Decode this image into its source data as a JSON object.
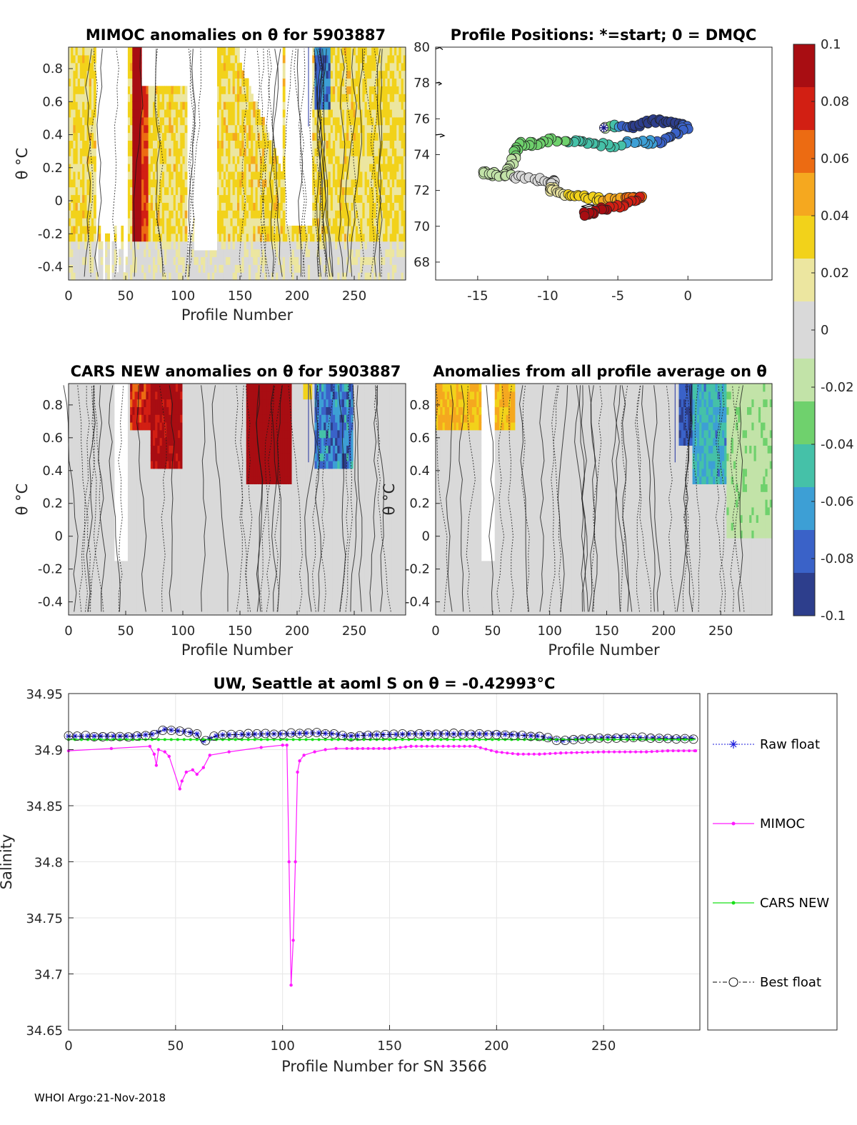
{
  "colors": {
    "scale": [
      "#2d3e8c",
      "#3a62c8",
      "#3d9fd5",
      "#45c1a8",
      "#6fd16d",
      "#c2e3a8",
      "#d9d9d9",
      "#ece6a0",
      "#f2d21a",
      "#f5a81f",
      "#ec6b12",
      "#d21f13",
      "#a80d12"
    ],
    "raw": "#1a1adb",
    "mimoc": "#ff1aff",
    "cars": "#18e018",
    "best": "#000000",
    "grid": "#e6e6e6",
    "contour": "#1a1a1a"
  },
  "panels": {
    "mimoc": {
      "title": "MIMOC anomalies on θ  for 5903887",
      "xlabel": "Profile Number",
      "ylabel": "θ °C"
    },
    "positions": {
      "title": "Profile Positions: *=start; 0 = DMQC"
    },
    "cars": {
      "title": "CARS NEW anomalies on θ for 5903887",
      "xlabel": "Profile Number",
      "ylabel": "θ °C"
    },
    "allavg": {
      "title": "Anomalies from all profile average on θ",
      "xlabel": "Profile Number",
      "ylabel": "θ °C"
    }
  },
  "colorbar": {
    "min": -0.1,
    "max": 0.1,
    "ticks": [
      "-0.1",
      "-0.08",
      "-0.06",
      "-0.04",
      "-0.02",
      "0",
      "0.02",
      "0.04",
      "0.06",
      "0.08",
      "0.1"
    ]
  },
  "chart_data": [
    {
      "type": "heatmap",
      "id": "mimoc",
      "title": "MIMOC anomalies on θ  for 5903887",
      "xlabel": "Profile Number",
      "ylabel": "θ °C",
      "xlim": [
        0,
        295
      ],
      "ylim": [
        -0.48,
        0.93
      ],
      "xticks": [
        "0",
        "50",
        "100",
        "150",
        "200",
        "250"
      ],
      "yticks": [
        "-0.4",
        "-0.2",
        "0",
        "0.2",
        "0.4",
        "0.6",
        "0.8"
      ]
    },
    {
      "type": "scatter",
      "id": "positions",
      "title": "Profile Positions: *=start; 0 = DMQC",
      "xlim": [
        -18,
        6
      ],
      "ylim": [
        67,
        80
      ],
      "xticks": [
        "-15",
        "-10",
        "-5",
        "0"
      ],
      "yticks": [
        "68",
        "70",
        "72",
        "74",
        "76",
        "78",
        "80"
      ],
      "start": [
        -6,
        75.5
      ],
      "track": [
        [
          -6,
          75.5,
          0.0
        ],
        [
          -4.6,
          75.6,
          -0.08
        ],
        [
          -3.5,
          75.6,
          -0.09
        ],
        [
          -2.5,
          75.9,
          -0.09
        ],
        [
          -1.5,
          75.8,
          -0.09
        ],
        [
          -0.5,
          75.6,
          -0.09
        ],
        [
          -0.1,
          75.5,
          -0.08
        ],
        [
          -1.2,
          75.0,
          -0.08
        ],
        [
          -2.3,
          74.7,
          -0.07
        ],
        [
          -3.5,
          74.7,
          -0.06
        ],
        [
          -5.5,
          74.5,
          -0.05
        ],
        [
          -7.0,
          74.6,
          -0.045
        ],
        [
          -8.2,
          74.7,
          -0.04
        ],
        [
          -9.6,
          74.8,
          -0.035
        ],
        [
          -10.8,
          74.6,
          -0.03
        ],
        [
          -11.8,
          74.6,
          -0.027
        ],
        [
          -12.3,
          74.3,
          -0.025
        ],
        [
          -12.5,
          73.7,
          -0.022
        ],
        [
          -12.9,
          73.0,
          -0.018
        ],
        [
          -13.9,
          72.9,
          -0.015
        ],
        [
          -14.7,
          73.0,
          -0.012
        ],
        [
          -13.2,
          72.8,
          -0.01
        ],
        [
          -11.8,
          72.7,
          -0.005
        ],
        [
          -10.4,
          72.6,
          0.0
        ],
        [
          -9.5,
          72.5,
          0.005
        ],
        [
          -9.8,
          72.1,
          0.01
        ],
        [
          -9.3,
          71.8,
          0.02
        ],
        [
          -8.2,
          71.7,
          0.025
        ],
        [
          -7.2,
          71.6,
          0.03
        ],
        [
          -6.0,
          71.5,
          0.04
        ],
        [
          -4.9,
          71.5,
          0.05
        ],
        [
          -3.9,
          71.6,
          0.06
        ],
        [
          -3.3,
          71.6,
          0.07
        ],
        [
          -4.5,
          71.2,
          0.08
        ],
        [
          -5.8,
          71.0,
          0.085
        ],
        [
          -6.8,
          70.8,
          0.09
        ],
        [
          -7.5,
          70.6,
          0.095
        ]
      ],
      "dmqc_marks": [
        [
          -5.7,
          71.2
        ],
        [
          -6.3,
          71.3
        ]
      ]
    },
    {
      "type": "heatmap",
      "id": "cars",
      "title": "CARS NEW anomalies on θ for 5903887",
      "xlabel": "Profile Number",
      "ylabel": "θ °C",
      "xlim": [
        0,
        295
      ],
      "ylim": [
        -0.48,
        0.93
      ],
      "xticks": [
        "0",
        "50",
        "100",
        "150",
        "200",
        "250"
      ],
      "yticks": [
        "-0.4",
        "-0.2",
        "0",
        "0.2",
        "0.4",
        "0.6",
        "0.8"
      ]
    },
    {
      "type": "heatmap",
      "id": "allavg",
      "title": "Anomalies from all profile average on θ",
      "xlabel": "Profile Number",
      "ylabel": "θ °C",
      "xlim": [
        0,
        295
      ],
      "ylim": [
        -0.48,
        0.93
      ],
      "xticks": [
        "0",
        "50",
        "100",
        "150",
        "200",
        "250"
      ],
      "yticks": [
        "-0.4",
        "-0.2",
        "0",
        "0.2",
        "0.4",
        "0.6",
        "0.8"
      ]
    },
    {
      "type": "line",
      "id": "salinity",
      "title": "UW, Seattle at aoml S on θ = -0.42993°C",
      "xlabel": "Profile Number for SN 3566",
      "ylabel": "Salinity",
      "xlim": [
        0,
        295
      ],
      "ylim": [
        34.65,
        34.95
      ],
      "xticks": [
        "0",
        "50",
        "100",
        "150",
        "200",
        "250"
      ],
      "yticks": [
        "34.65",
        "34.7",
        "34.75",
        "34.8",
        "34.85",
        "34.9",
        "34.95"
      ],
      "legend": [
        "Raw float",
        "MIMOC",
        "CARS NEW",
        "Best float"
      ],
      "series": [
        {
          "name": "Raw float",
          "style": "dotted-star",
          "points": [
            [
              0,
              34.912
            ],
            [
              15,
              34.912
            ],
            [
              30,
              34.912
            ],
            [
              40,
              34.914
            ],
            [
              45,
              34.918
            ],
            [
              50,
              34.917
            ],
            [
              55,
              34.916
            ],
            [
              60,
              34.914
            ],
            [
              62,
              34.907
            ],
            [
              70,
              34.913
            ],
            [
              90,
              34.914
            ],
            [
              100,
              34.914
            ],
            [
              115,
              34.915
            ],
            [
              125,
              34.914
            ],
            [
              130,
              34.912
            ],
            [
              140,
              34.913
            ],
            [
              160,
              34.914
            ],
            [
              200,
              34.914
            ],
            [
              220,
              34.912
            ],
            [
              230,
              34.908
            ],
            [
              240,
              34.91
            ],
            [
              260,
              34.911
            ],
            [
              280,
              34.91
            ],
            [
              293,
              34.91
            ]
          ]
        },
        {
          "name": "MIMOC",
          "style": "line-dot",
          "points": [
            [
              0,
              34.899
            ],
            [
              20,
              34.901
            ],
            [
              38,
              34.903
            ],
            [
              40,
              34.896
            ],
            [
              41,
              34.886
            ],
            [
              42,
              34.9
            ],
            [
              45,
              34.898
            ],
            [
              47,
              34.894
            ],
            [
              52,
              34.865
            ],
            [
              53,
              34.872
            ],
            [
              55,
              34.88
            ],
            [
              58,
              34.882
            ],
            [
              60,
              34.878
            ],
            [
              63,
              34.884
            ],
            [
              66,
              34.895
            ],
            [
              75,
              34.898
            ],
            [
              90,
              34.902
            ],
            [
              100,
              34.904
            ],
            [
              102,
              34.904
            ],
            [
              103,
              34.8
            ],
            [
              104,
              34.69
            ],
            [
              105,
              34.73
            ],
            [
              106,
              34.8
            ],
            [
              107,
              34.88
            ],
            [
              108,
              34.89
            ],
            [
              110,
              34.895
            ],
            [
              115,
              34.898
            ],
            [
              120,
              34.9
            ],
            [
              125,
              34.901
            ],
            [
              135,
              34.901
            ],
            [
              150,
              34.901
            ],
            [
              160,
              34.903
            ],
            [
              190,
              34.903
            ],
            [
              200,
              34.898
            ],
            [
              210,
              34.896
            ],
            [
              220,
              34.896
            ],
            [
              230,
              34.897
            ],
            [
              250,
              34.898
            ],
            [
              270,
              34.898
            ],
            [
              280,
              34.899
            ],
            [
              293,
              34.899
            ]
          ]
        },
        {
          "name": "CARS NEW",
          "style": "line-dot",
          "points": [
            [
              0,
              34.909
            ],
            [
              50,
              34.909
            ],
            [
              100,
              34.909
            ],
            [
              150,
              34.909
            ],
            [
              200,
              34.909
            ],
            [
              250,
              34.909
            ],
            [
              293,
              34.909
            ]
          ]
        },
        {
          "name": "Best float",
          "style": "dashdot-circle",
          "points": [
            [
              0,
              34.912
            ],
            [
              15,
              34.912
            ],
            [
              30,
              34.912
            ],
            [
              40,
              34.914
            ],
            [
              45,
              34.918
            ],
            [
              50,
              34.917
            ],
            [
              55,
              34.916
            ],
            [
              60,
              34.914
            ],
            [
              62,
              34.907
            ],
            [
              70,
              34.913
            ],
            [
              90,
              34.914
            ],
            [
              100,
              34.914
            ],
            [
              115,
              34.915
            ],
            [
              125,
              34.914
            ],
            [
              130,
              34.912
            ],
            [
              140,
              34.913
            ],
            [
              160,
              34.914
            ],
            [
              200,
              34.914
            ],
            [
              220,
              34.912
            ],
            [
              230,
              34.908
            ],
            [
              240,
              34.91
            ],
            [
              260,
              34.911
            ],
            [
              280,
              34.91
            ],
            [
              293,
              34.91
            ]
          ]
        }
      ]
    }
  ],
  "footer": "WHOI Argo:21-Nov-2018"
}
